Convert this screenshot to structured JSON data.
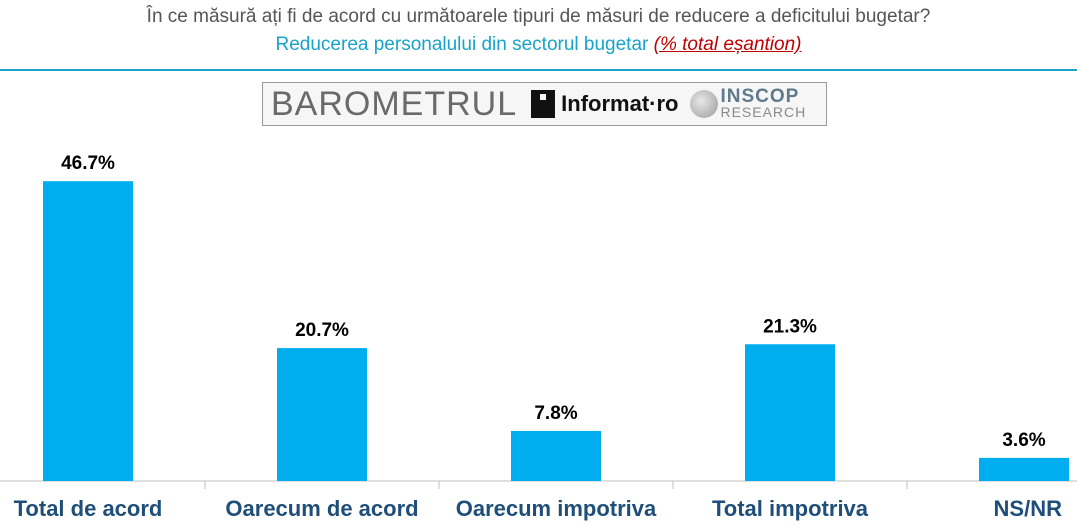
{
  "header": {
    "title": "În ce măsură ați fi de acord cu următoarele tipuri de măsuri de reducere a deficitului bugetar?",
    "subtitle": "Reducerea personalului din sectorul bugetar ",
    "subtitle_note": "(% total eșantion)"
  },
  "logos": {
    "barometrul": "BAROMETRUL",
    "informat": "Informat·ro",
    "inscop_top": "INSCOP",
    "inscop_bottom": "RESEARCH"
  },
  "colors": {
    "bar": "#00adef",
    "accent": "#1aa3c9",
    "category_text": "#1f4e79",
    "note": "#c00000"
  },
  "chart_data": {
    "type": "bar",
    "categories": [
      "Total de acord",
      "Oarecum de acord",
      "Oarecum impotriva",
      "Total impotriva",
      "NS/NR"
    ],
    "values": [
      46.7,
      20.7,
      7.8,
      21.3,
      3.6
    ],
    "value_labels": [
      "46.7%",
      "20.7%",
      "7.8%",
      "21.3%",
      "3.6%"
    ],
    "ylim": [
      0,
      50
    ],
    "grid": false,
    "legend": "none"
  }
}
